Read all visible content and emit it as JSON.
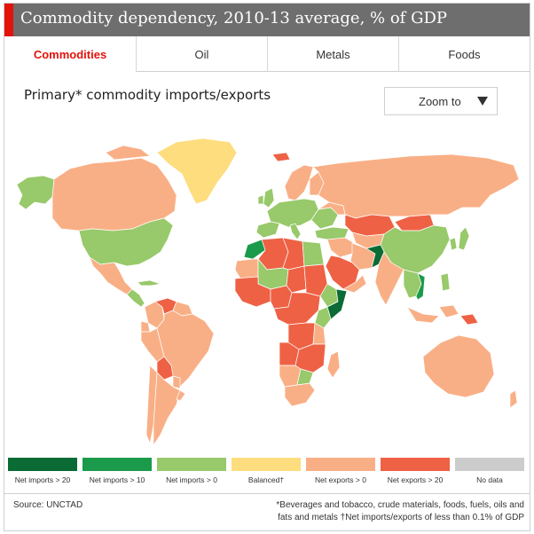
{
  "title": "Commodity dependency, 2010-13 average, % of GDP",
  "tabs": [
    {
      "label": "Commodities",
      "active": true
    },
    {
      "label": "Oil",
      "active": false
    },
    {
      "label": "Metals",
      "active": false
    },
    {
      "label": "Foods",
      "active": false
    }
  ],
  "subtitle": "Primary* commodity imports/exports",
  "zoom": {
    "label": "Zoom to"
  },
  "colors": {
    "net_imports_gt_20": "#0a6b34",
    "net_imports_gt_10": "#1a9a4a",
    "net_imports_gt_0": "#98c96a",
    "balanced": "#fddd7e",
    "net_exports_gt_0": "#f9af86",
    "net_exports_gt_20": "#ee6145",
    "no_data": "#cccccc",
    "water": "#ffffff"
  },
  "legend": [
    {
      "label": "Net imports > 20",
      "color": "#0a6b34"
    },
    {
      "label": "Net imports > 10",
      "color": "#1a9a4a"
    },
    {
      "label": "Net imports > 0",
      "color": "#98c96a"
    },
    {
      "label": "Balanced†",
      "color": "#fddd7e"
    },
    {
      "label": "Net exports > 0",
      "color": "#f9af86"
    },
    {
      "label": "Net exports > 20",
      "color": "#ee6145"
    },
    {
      "label": "No data",
      "color": "#cccccc"
    }
  ],
  "source": "Source: UNCTAD",
  "footnote_line1": "*Beverages and tobacco, crude materials, foods, fuels, oils and",
  "footnote_line2": "fats and metals †Net imports/exports of less than 0.1% of GDP"
}
